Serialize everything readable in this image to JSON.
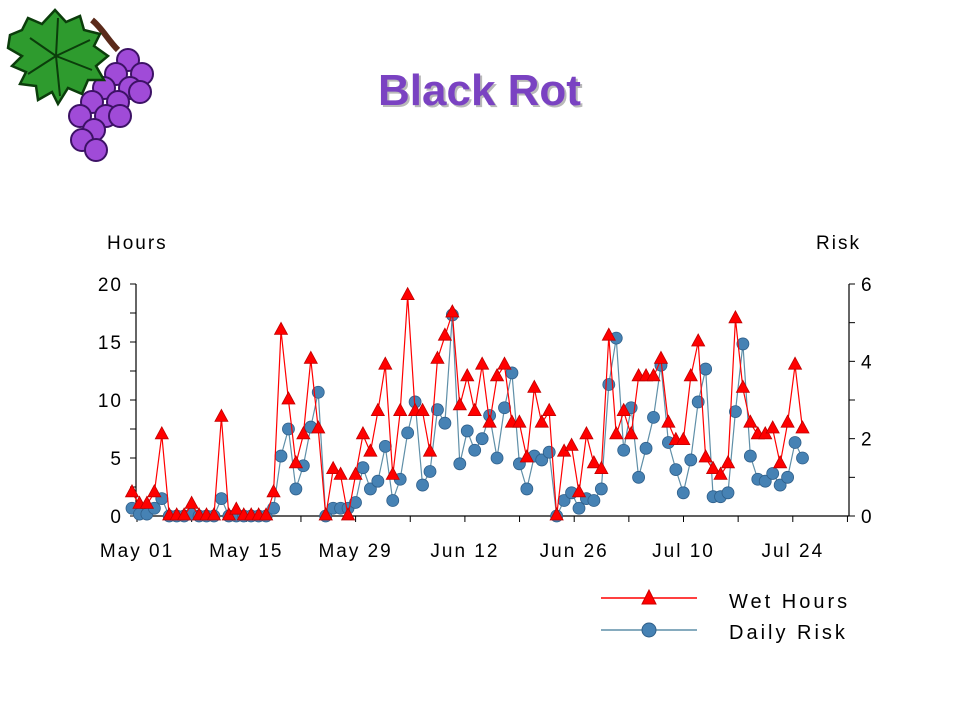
{
  "title": "Black Rot",
  "logo": {
    "icon": "grape-bunch-icon"
  },
  "colors": {
    "title": "#7a42c2",
    "wet_hours": "#ff0000",
    "daily_risk": "#4682b4",
    "risk_line": "#5f8fa8"
  },
  "chart_data": {
    "type": "line",
    "ylabel_left": "Hours",
    "ylabel_right": "Risk",
    "ylim_left": [
      0,
      20
    ],
    "ylim_right": [
      0,
      6
    ],
    "yticks_left": [
      "0",
      "5",
      "10",
      "15",
      "20"
    ],
    "yticks_right": [
      "0",
      "2",
      "4",
      "6"
    ],
    "x_start_label": "May 01",
    "x_tick_labels": [
      "May 01",
      "May 15",
      "May 29",
      "Jun 12",
      "Jun 26",
      "Jul 10",
      "Jul 24"
    ],
    "series": [
      {
        "name": "Wet Hours",
        "axis": "left",
        "marker": "triangle",
        "values": [
          2,
          1,
          1,
          2,
          7,
          0,
          0,
          0,
          1,
          0,
          0,
          0,
          8.5,
          0,
          0.5,
          0,
          0,
          0,
          0,
          2,
          16,
          10,
          4.5,
          7,
          13.5,
          7.5,
          0,
          4,
          3.5,
          0,
          3.5,
          7,
          5.5,
          9,
          13,
          3.5,
          9,
          19,
          9,
          9,
          5.5,
          13.5,
          15.5,
          17.5,
          9.5,
          12,
          9,
          13,
          8,
          12,
          13,
          8,
          8,
          5,
          11,
          8,
          9,
          0,
          5.5,
          6,
          2,
          7,
          4.5,
          4,
          15.5,
          7,
          9,
          7,
          12,
          12,
          12,
          13.5,
          8,
          6.5,
          6.5,
          12,
          15,
          5,
          4,
          3.5,
          4.5,
          17,
          11,
          8,
          7,
          7,
          7.5,
          4.5,
          8,
          13,
          7.5
        ]
      },
      {
        "name": "Daily Risk",
        "axis": "right",
        "marker": "circle",
        "values": [
          0.2,
          0.05,
          0.05,
          0.2,
          0.45,
          0,
          0,
          0,
          0.05,
          0,
          0,
          0,
          0.45,
          0,
          0,
          0,
          0,
          0,
          0,
          0.2,
          1.55,
          2.25,
          0.7,
          1.3,
          2.3,
          3.2,
          0,
          0.2,
          0.2,
          0.2,
          0.35,
          1.25,
          0.7,
          0.9,
          1.8,
          0.4,
          0.95,
          2.15,
          2.95,
          0.8,
          1.15,
          2.75,
          2.4,
          5.2,
          1.35,
          2.2,
          1.7,
          2,
          2.6,
          1.5,
          2.8,
          3.7,
          1.35,
          0.7,
          1.55,
          1.45,
          1.65,
          0,
          0.4,
          0.6,
          0.2,
          0.45,
          0.4,
          0.7,
          3.4,
          4.6,
          1.7,
          2.8,
          1,
          1.75,
          2.55,
          3.9,
          1.9,
          1.2,
          0.6,
          1.45,
          2.95,
          3.8,
          0.5,
          0.5,
          0.6,
          2.7,
          4.45,
          1.55,
          0.95,
          0.9,
          1.1,
          0.8,
          1,
          1.9,
          1.5
        ]
      }
    ],
    "legend_position": "bottom-right"
  }
}
